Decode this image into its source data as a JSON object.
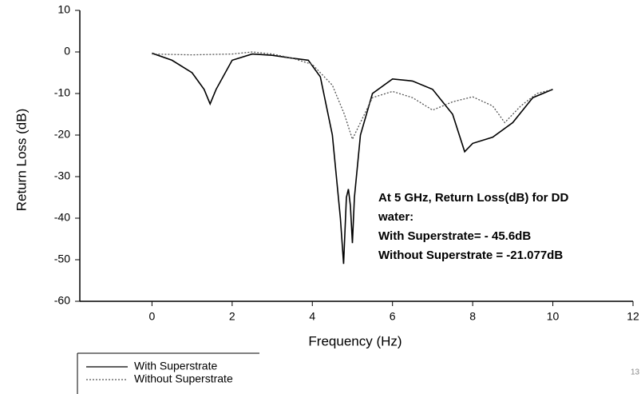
{
  "chart_data": {
    "type": "line",
    "xlabel": "Frequency (Hz)",
    "ylabel": "Return Loss (dB)",
    "xlim": [
      -1.8,
      12
    ],
    "ylim": [
      -60,
      10
    ],
    "xticks": [
      0,
      2,
      4,
      6,
      8,
      10,
      12
    ],
    "yticks": [
      -60,
      -50,
      -40,
      -30,
      -20,
      -10,
      0,
      10
    ],
    "series": [
      {
        "name": "With Superstrate",
        "color": "#000000",
        "dash": "solid",
        "x": [
          0,
          0.5,
          1,
          1.3,
          1.45,
          1.6,
          2,
          2.5,
          3,
          3.5,
          3.9,
          4.2,
          4.5,
          4.7,
          4.78,
          4.85,
          4.9,
          4.95,
          5.0,
          5.05,
          5.2,
          5.5,
          6,
          6.5,
          7,
          7.5,
          7.8,
          8,
          8.5,
          9,
          9.5,
          10
        ],
        "values": [
          -0.3,
          -2,
          -5,
          -9,
          -12.5,
          -9,
          -2,
          -0.5,
          -0.8,
          -1.5,
          -2,
          -6,
          -20,
          -40,
          -51,
          -35,
          -33,
          -37,
          -46,
          -35,
          -20,
          -10,
          -6.5,
          -7,
          -9,
          -15,
          -24,
          -22,
          -20.5,
          -17,
          -11,
          -9
        ]
      },
      {
        "name": "Without Superstrate",
        "color": "#555555",
        "dash": "dotted",
        "x": [
          0,
          1,
          2,
          2.5,
          3,
          3.5,
          4,
          4.5,
          4.8,
          5,
          5.2,
          5.5,
          6,
          6.5,
          7,
          7.5,
          8,
          8.5,
          8.8,
          9.2,
          9.6,
          10
        ],
        "values": [
          -0.5,
          -0.7,
          -0.5,
          0,
          -0.5,
          -1.5,
          -3,
          -8,
          -15,
          -21,
          -17,
          -11,
          -9.5,
          -11,
          -14,
          -12,
          -10.8,
          -13,
          -17,
          -13,
          -10,
          -9
        ]
      }
    ],
    "annotation": [
      "At 5 GHz, Return Loss(dB) for DD",
      "water:",
      "With Superstrate=  - 45.6dB",
      "Without Superstrate = -21.077dB"
    ],
    "page_number": "13"
  }
}
